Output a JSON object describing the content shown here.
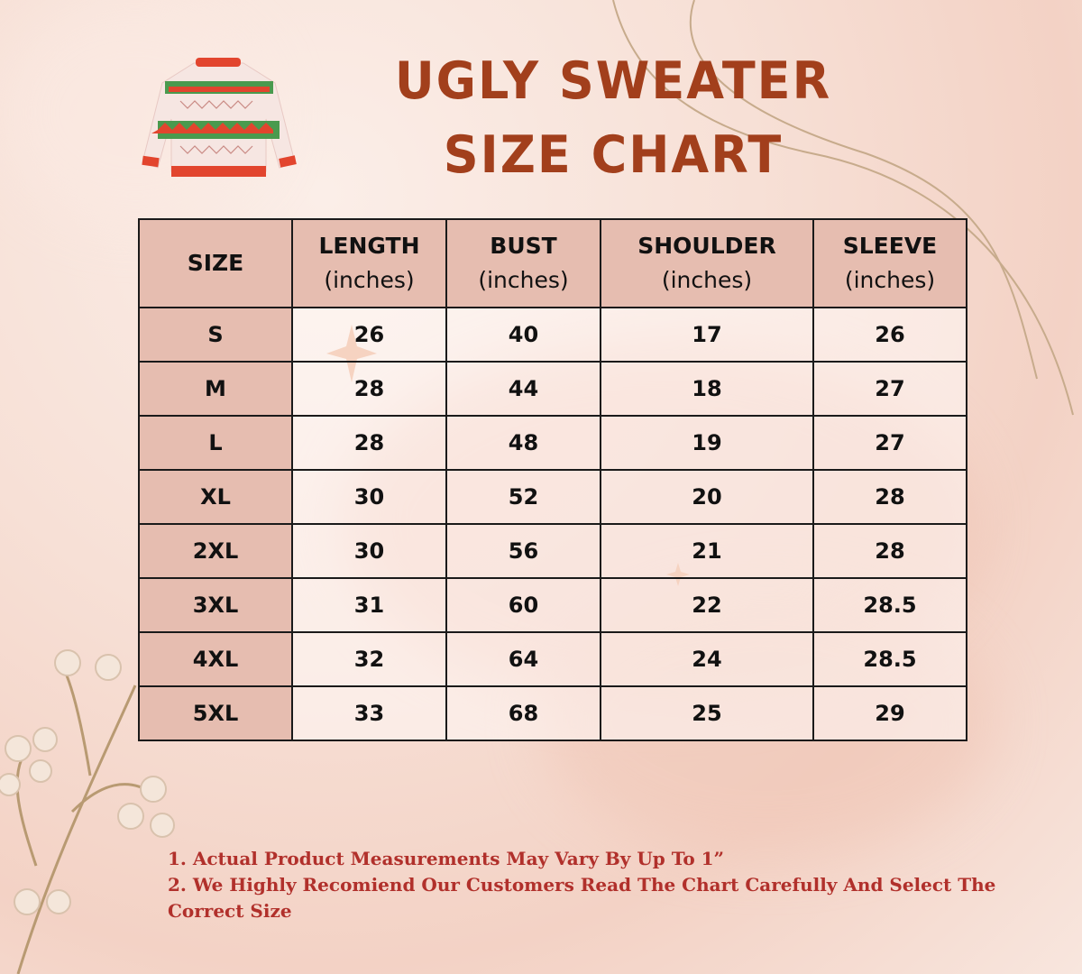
{
  "title": {
    "line1": "UGLY SWEATER",
    "line2": "SIZE CHART"
  },
  "colors": {
    "title": "#a23f1c",
    "header_fill": "#e6bdb0",
    "notes": "#b1302b",
    "background": "#f6e0d6"
  },
  "table": {
    "headers": [
      {
        "label": "SIZE",
        "unit": ""
      },
      {
        "label": "LENGTH",
        "unit": "(inches)"
      },
      {
        "label": "BUST",
        "unit": "(inches)"
      },
      {
        "label": "SHOULDER",
        "unit": "(inches)"
      },
      {
        "label": "SLEEVE",
        "unit": "(inches)"
      }
    ],
    "rows": [
      [
        "S",
        "26",
        "40",
        "17",
        "26"
      ],
      [
        "M",
        "28",
        "44",
        "18",
        "27"
      ],
      [
        "L",
        "28",
        "48",
        "19",
        "27"
      ],
      [
        "XL",
        "30",
        "52",
        "20",
        "28"
      ],
      [
        "2XL",
        "30",
        "56",
        "21",
        "28"
      ],
      [
        "3XL",
        "31",
        "60",
        "22",
        "28.5"
      ],
      [
        "4XL",
        "32",
        "64",
        "24",
        "28.5"
      ],
      [
        "5XL",
        "33",
        "68",
        "25",
        "29"
      ]
    ]
  },
  "notes": [
    "1. Actual Product Measurements May Vary By Up To 1”",
    "2. We Highly Recomiend Our Customers Read The Chart Carefully And Select The Correct Size"
  ],
  "icons": {
    "illustration": "sweater-icon",
    "decor": [
      "branch-with-berries",
      "sparkle-star",
      "curved-lines"
    ]
  }
}
